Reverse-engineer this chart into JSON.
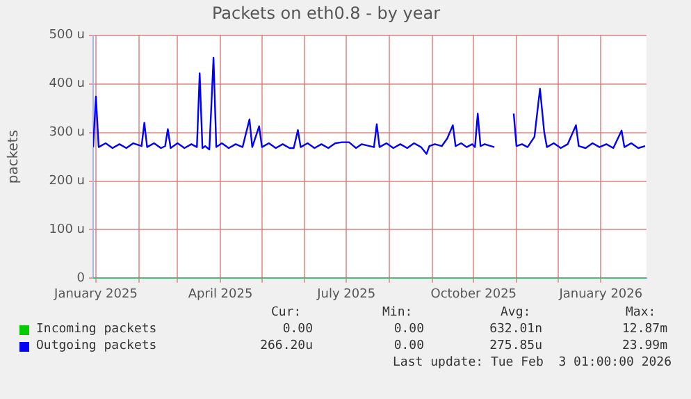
{
  "chart_data": {
    "type": "line",
    "title": "Packets on eth0.8 - by year",
    "ylabel": "packets",
    "xlim": [
      "2024-12-30",
      "2026-02-03"
    ],
    "xticks": [
      {
        "value": "2025-01-01",
        "label": "January 2025"
      },
      {
        "value": "2025-02-01",
        "label": null
      },
      {
        "value": "2025-03-01",
        "label": null
      },
      {
        "value": "2025-04-01",
        "label": "April 2025"
      },
      {
        "value": "2025-05-01",
        "label": null
      },
      {
        "value": "2025-06-01",
        "label": null
      },
      {
        "value": "2025-07-01",
        "label": "July 2025"
      },
      {
        "value": "2025-08-01",
        "label": null
      },
      {
        "value": "2025-09-01",
        "label": null
      },
      {
        "value": "2025-10-01",
        "label": "October 2025"
      },
      {
        "value": "2025-11-01",
        "label": null
      },
      {
        "value": "2025-12-01",
        "label": null
      },
      {
        "value": "2026-01-01",
        "label": "January 2026"
      }
    ],
    "ylim": [
      0,
      500
    ],
    "yticks": [
      0,
      {
        "value": 100,
        "label": "100 u"
      },
      {
        "value": 200,
        "label": "200 u"
      },
      {
        "value": 300,
        "label": "300 u"
      },
      {
        "value": 400,
        "label": "400 u"
      },
      {
        "value": 500,
        "label": "500 u"
      }
    ],
    "grid": true,
    "legend": "bottom",
    "marker": "none",
    "line_style": "solid",
    "series": [
      {
        "name": "Incoming packets",
        "color": "#00cc00",
        "x": [
          "2024-12-30",
          "2026-02-03"
        ],
        "values": [
          0,
          0
        ]
      },
      {
        "name": "Outgoing packets",
        "color": "#0000ff",
        "x": [
          "2024-12-30",
          "2025-01-01",
          "2025-01-03",
          "2025-01-08",
          "2025-01-13",
          "2025-01-18",
          "2025-01-23",
          "2025-01-28",
          "2025-02-03",
          "2025-02-05",
          "2025-02-07",
          "2025-02-12",
          "2025-02-17",
          "2025-02-20",
          "2025-02-22",
          "2025-02-24",
          "2025-03-01",
          "2025-03-06",
          "2025-03-11",
          "2025-03-15",
          "2025-03-17",
          "2025-03-19",
          "2025-03-21",
          "2025-03-24",
          "2025-03-27",
          "2025-03-29",
          "2025-04-02",
          "2025-04-07",
          "2025-04-12",
          "2025-04-17",
          "2025-04-22",
          "2025-04-24",
          "2025-04-29",
          "2025-05-01",
          "2025-05-06",
          "2025-05-11",
          "2025-05-16",
          "2025-05-21",
          "2025-05-24",
          "2025-05-27",
          "2025-05-29",
          "2025-06-03",
          "2025-06-08",
          "2025-06-13",
          "2025-06-18",
          "2025-06-23",
          "2025-06-28",
          "2025-07-03",
          "2025-07-08",
          "2025-07-12",
          "2025-07-21",
          "2025-07-23",
          "2025-07-25",
          "2025-07-30",
          "2025-08-04",
          "2025-08-09",
          "2025-08-14",
          "2025-08-19",
          "2025-08-24",
          "2025-08-28",
          "2025-08-30",
          "2025-09-03",
          "2025-09-08",
          "2025-09-12",
          "2025-09-16",
          "2025-09-18",
          "2025-09-22",
          "2025-09-26",
          "2025-09-30",
          "2025-10-02",
          "2025-10-04",
          "2025-10-06",
          "2025-10-09",
          "2025-10-16",
          "2025-10-23",
          "2025-10-30",
          "2025-11-01",
          "2025-11-05",
          "2025-11-09",
          "2025-11-14",
          "2025-11-18",
          "2025-11-21",
          "2025-11-23",
          "2025-11-28",
          "2025-12-03",
          "2025-12-08",
          "2025-12-14",
          "2025-12-16",
          "2025-12-21",
          "2025-12-26",
          "2025-12-31",
          "2026-01-05",
          "2026-01-10",
          "2026-01-16",
          "2026-01-18",
          "2026-01-23",
          "2026-01-28",
          "2026-02-02"
        ],
        "values": [
          270,
          374,
          270,
          278,
          268,
          276,
          268,
          278,
          272,
          320,
          270,
          278,
          268,
          272,
          307,
          268,
          278,
          268,
          276,
          270,
          422,
          268,
          272,
          265,
          454,
          270,
          278,
          268,
          276,
          270,
          327,
          270,
          313,
          270,
          278,
          268,
          276,
          268,
          268,
          305,
          270,
          278,
          268,
          276,
          268,
          278,
          280,
          280,
          268,
          276,
          270,
          317,
          270,
          278,
          268,
          276,
          268,
          278,
          270,
          256,
          272,
          276,
          272,
          288,
          315,
          272,
          278,
          270,
          276,
          270,
          339,
          272,
          276,
          270,
          null,
          339,
          272,
          276,
          270,
          291,
          390,
          302,
          270,
          278,
          268,
          276,
          315,
          272,
          268,
          278,
          270,
          276,
          268,
          304,
          270,
          278,
          268,
          272
        ]
      }
    ],
    "annotations": [
      "Cur:",
      "Min:",
      "Avg:",
      "Max:",
      "0.00",
      "0.00",
      "632.01n",
      "12.87m",
      "266.20u",
      "0.00",
      "275.85u",
      "23.99m",
      "Last update: Tue Feb  3 01:00:00 2026"
    ]
  }
}
